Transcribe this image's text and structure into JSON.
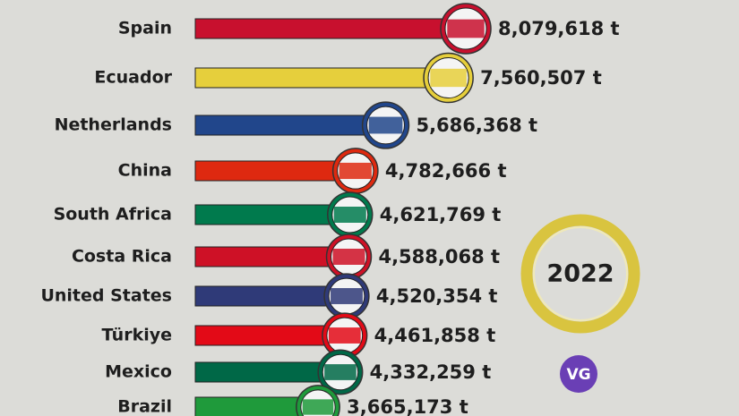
{
  "chart_data": {
    "type": "bar",
    "orientation": "horizontal",
    "categories": [
      "Spain",
      "Ecuador",
      "Netherlands",
      "China",
      "South Africa",
      "Costa Rica",
      "United States",
      "Türkiye",
      "Mexico",
      "Brazil"
    ],
    "values": [
      8079618,
      7560507,
      5686368,
      4782666,
      4621769,
      4588068,
      4520354,
      4461858,
      4332259,
      3665173
    ],
    "value_labels": [
      "8,079,618 t",
      "7,560,507 t",
      "5,686,368 t",
      "4,782,666 t",
      "4,621,769 t",
      "4,588,068 t",
      "4,520,354 t",
      "4,461,858 t",
      "4,332,259 t",
      "3,665,173 t"
    ],
    "colors": [
      "#c8102e",
      "#e6cf3c",
      "#21468b",
      "#de2910",
      "#007a4d",
      "#ce1126",
      "#2f3a78",
      "#e30a17",
      "#006847",
      "#1f9a3b"
    ],
    "year": "2022",
    "logo": "VG"
  }
}
